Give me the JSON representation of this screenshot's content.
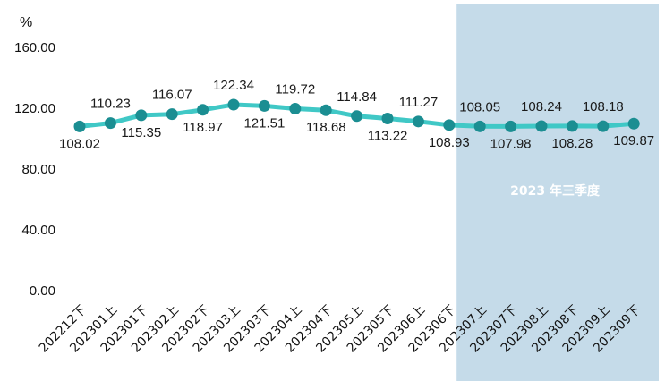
{
  "chart_data": {
    "type": "line",
    "ylabel": "%",
    "ylim": [
      0,
      160
    ],
    "yticks": [
      "0.00",
      "40.00",
      "80.00",
      "120.00",
      "160.00"
    ],
    "grid": false,
    "categories": [
      "2022年12月下",
      "2023年01月上",
      "2023年01月下",
      "2023年02月上",
      "2023年02月下",
      "2023年03月上",
      "2023年03月下",
      "2023年04月上",
      "2023年04月下",
      "2023年05月上",
      "2023年05月下",
      "2023年06月上",
      "2023年06月下",
      "2023年07月上",
      "2023年07月下",
      "2023年08月上",
      "2023年08月下",
      "2023年09月上",
      "2023年09月下"
    ],
    "series": [
      {
        "values": [
          108.02,
          110.23,
          115.35,
          116.07,
          118.97,
          122.34,
          121.51,
          119.72,
          118.68,
          114.84,
          113.22,
          111.27,
          108.93,
          108.05,
          107.98,
          108.24,
          108.28,
          108.18,
          109.87
        ],
        "labels": [
          "108.02",
          "110.23",
          "115.35",
          "116.07",
          "118.97",
          "122.34",
          "121.51",
          "119.72",
          "118.68",
          "114.84",
          "113.22",
          "111.27",
          "108.93",
          "108.05",
          "107.98",
          "108.24",
          "108.28",
          "108.18",
          "109.87"
        ]
      }
    ],
    "highlight": {
      "from_index": 13,
      "to_index": 18,
      "label": "2023 年三季度"
    },
    "colors": {
      "line": "#40c8c6",
      "marker": "#1b8e92",
      "highlight_band": "#c5dbe9",
      "annotation": "#ffffff"
    }
  }
}
